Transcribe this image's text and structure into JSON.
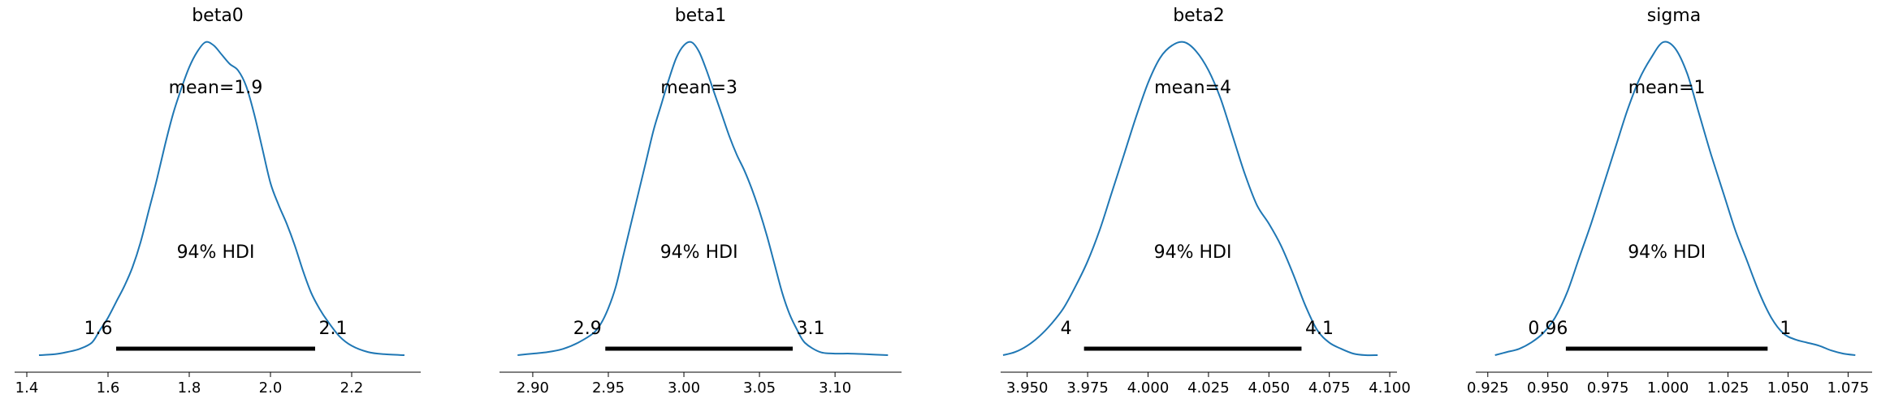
{
  "figure": {
    "background": "#ffffff"
  },
  "chart_data": [
    {
      "type": "area",
      "title": "beta0",
      "mean_label": "mean=1.9",
      "hdi_label": "94% HDI",
      "hdi": [
        1.62,
        2.11
      ],
      "hdi_labels": [
        "1.6",
        "2.1"
      ],
      "xlim": [
        1.37,
        2.37
      ],
      "xticks": [
        1.4,
        1.6,
        1.8,
        2.0,
        2.2
      ],
      "xtick_labels": [
        "1.4",
        "1.6",
        "1.8",
        "2.0",
        "2.2"
      ],
      "x": [
        1.43,
        1.47,
        1.5,
        1.53,
        1.56,
        1.58,
        1.6,
        1.62,
        1.64,
        1.66,
        1.68,
        1.7,
        1.72,
        1.74,
        1.76,
        1.78,
        1.8,
        1.82,
        1.84,
        1.86,
        1.88,
        1.9,
        1.92,
        1.94,
        1.96,
        1.98,
        2.0,
        2.02,
        2.04,
        2.06,
        2.08,
        2.1,
        2.12,
        2.14,
        2.17,
        2.2,
        2.24,
        2.28,
        2.33
      ],
      "density": [
        0.0,
        0.003,
        0.01,
        0.02,
        0.04,
        0.08,
        0.12,
        0.17,
        0.22,
        0.28,
        0.36,
        0.46,
        0.56,
        0.67,
        0.77,
        0.85,
        0.92,
        0.97,
        1.0,
        0.99,
        0.96,
        0.93,
        0.91,
        0.86,
        0.77,
        0.66,
        0.55,
        0.48,
        0.42,
        0.35,
        0.27,
        0.2,
        0.15,
        0.11,
        0.06,
        0.03,
        0.01,
        0.003,
        0.0
      ],
      "color": "#1f77b4"
    },
    {
      "type": "area",
      "title": "beta1",
      "mean_label": "mean=3",
      "hdi_label": "94% HDI",
      "hdi": [
        2.948,
        3.072
      ],
      "hdi_labels": [
        "2.9",
        "3.1"
      ],
      "xlim": [
        2.878,
        3.144
      ],
      "xticks": [
        2.9,
        2.95,
        3.0,
        3.05,
        3.1
      ],
      "xtick_labels": [
        "2.90",
        "2.95",
        "3.00",
        "3.05",
        "3.10"
      ],
      "x": [
        2.89,
        2.9,
        2.91,
        2.92,
        2.93,
        2.94,
        2.945,
        2.95,
        2.955,
        2.96,
        2.965,
        2.97,
        2.975,
        2.98,
        2.985,
        2.99,
        2.995,
        3.0,
        3.005,
        3.01,
        3.015,
        3.02,
        3.025,
        3.03,
        3.035,
        3.04,
        3.045,
        3.05,
        3.055,
        3.06,
        3.065,
        3.07,
        3.075,
        3.08,
        3.09,
        3.1,
        3.11,
        3.12,
        3.135
      ],
      "density": [
        0.0,
        0.005,
        0.01,
        0.02,
        0.04,
        0.07,
        0.1,
        0.15,
        0.22,
        0.32,
        0.42,
        0.52,
        0.62,
        0.72,
        0.8,
        0.88,
        0.95,
        0.99,
        1.0,
        0.97,
        0.91,
        0.84,
        0.77,
        0.7,
        0.64,
        0.59,
        0.53,
        0.46,
        0.38,
        0.29,
        0.2,
        0.13,
        0.08,
        0.04,
        0.01,
        0.005,
        0.005,
        0.003,
        0.0
      ],
      "color": "#1f77b4"
    },
    {
      "type": "area",
      "title": "beta2",
      "mean_label": "mean=4",
      "hdi_label": "94% HDI",
      "hdi": [
        3.9735,
        4.0635
      ],
      "hdi_labels": [
        "4",
        "4.1"
      ],
      "xlim": [
        3.939,
        4.103
      ],
      "xticks": [
        3.95,
        3.975,
        4.0,
        4.025,
        4.05,
        4.075,
        4.1
      ],
      "xtick_labels": [
        "3.950",
        "3.975",
        "4.000",
        "4.025",
        "4.050",
        "4.075",
        "4.100"
      ],
      "x": [
        3.94,
        3.945,
        3.95,
        3.955,
        3.96,
        3.965,
        3.97,
        3.975,
        3.98,
        3.985,
        3.99,
        3.995,
        4.0,
        4.005,
        4.01,
        4.015,
        4.02,
        4.025,
        4.03,
        4.035,
        4.04,
        4.045,
        4.05,
        4.055,
        4.06,
        4.065,
        4.07,
        4.075,
        4.08,
        4.085,
        4.09,
        4.095
      ],
      "density": [
        0.0,
        0.01,
        0.03,
        0.06,
        0.1,
        0.15,
        0.22,
        0.3,
        0.4,
        0.52,
        0.64,
        0.76,
        0.87,
        0.95,
        0.99,
        1.0,
        0.97,
        0.91,
        0.82,
        0.7,
        0.58,
        0.48,
        0.42,
        0.35,
        0.26,
        0.16,
        0.08,
        0.04,
        0.02,
        0.005,
        0.0,
        0.0
      ],
      "color": "#1f77b4"
    },
    {
      "type": "area",
      "title": "sigma",
      "mean_label": "mean=1",
      "hdi_label": "94% HDI",
      "hdi": [
        0.9575,
        1.0415
      ],
      "hdi_labels": [
        "0.96",
        "1"
      ],
      "xlim": [
        0.92,
        1.085
      ],
      "xticks": [
        0.925,
        0.95,
        0.975,
        1.0,
        1.025,
        1.05,
        1.075
      ],
      "xtick_labels": [
        "0.925",
        "0.950",
        "0.975",
        "1.000",
        "1.025",
        "1.050",
        "1.075"
      ],
      "x": [
        0.928,
        0.933,
        0.938,
        0.943,
        0.948,
        0.953,
        0.958,
        0.963,
        0.968,
        0.973,
        0.978,
        0.983,
        0.988,
        0.993,
        0.998,
        1.003,
        1.008,
        1.013,
        1.018,
        1.023,
        1.028,
        1.033,
        1.038,
        1.043,
        1.048,
        1.053,
        1.058,
        1.063,
        1.068,
        1.073,
        1.078
      ],
      "density": [
        0.0,
        0.01,
        0.02,
        0.04,
        0.07,
        0.12,
        0.2,
        0.31,
        0.42,
        0.54,
        0.66,
        0.78,
        0.88,
        0.95,
        1.0,
        0.98,
        0.9,
        0.77,
        0.64,
        0.52,
        0.4,
        0.3,
        0.2,
        0.12,
        0.07,
        0.05,
        0.04,
        0.03,
        0.015,
        0.005,
        0.0
      ],
      "color": "#1f77b4"
    }
  ]
}
